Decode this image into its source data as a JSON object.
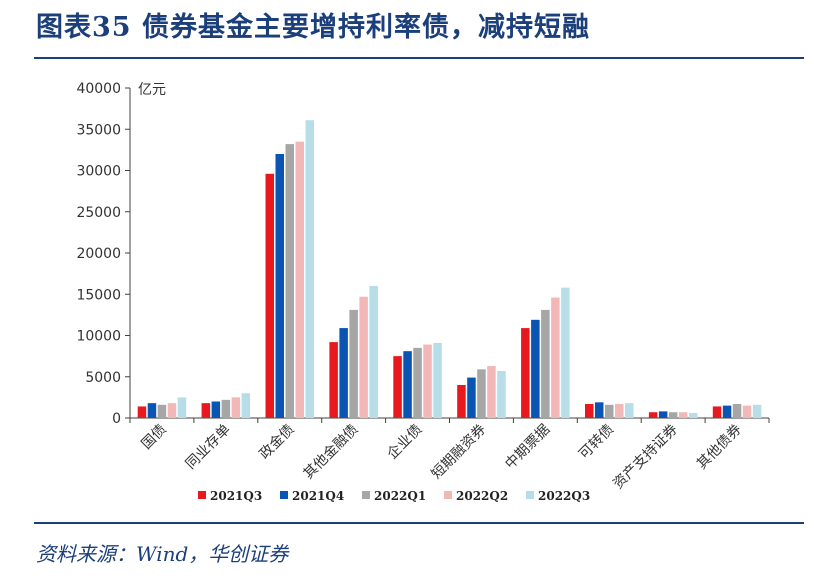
{
  "figure": {
    "title": "图表35  债券基金主要增持利率债，减持短融",
    "source": "资料来源：Wind，华创证券"
  },
  "chart_data": {
    "type": "bar",
    "ylabel": "亿元",
    "ylim": [
      0,
      40000
    ],
    "yticks": [
      0,
      5000,
      10000,
      15000,
      20000,
      25000,
      30000,
      35000,
      40000
    ],
    "grid": false,
    "legend_position": "bottom",
    "categories": [
      "国债",
      "同业存单",
      "政金债",
      "其他金融债",
      "企业债",
      "短期融资券",
      "中期票据",
      "可转债",
      "资产支持证券",
      "其他债券"
    ],
    "series": [
      {
        "name": "2021Q3",
        "color": "#e8191e",
        "values": [
          1400,
          1800,
          29600,
          9200,
          7500,
          4000,
          10900,
          1700,
          700,
          1400
        ]
      },
      {
        "name": "2021Q4",
        "color": "#0a54b4",
        "values": [
          1800,
          2000,
          32000,
          10900,
          8100,
          4900,
          11900,
          1900,
          800,
          1500
        ]
      },
      {
        "name": "2022Q1",
        "color": "#a6a6a6",
        "values": [
          1600,
          2200,
          33200,
          13100,
          8500,
          5900,
          13100,
          1600,
          700,
          1700
        ]
      },
      {
        "name": "2022Q2",
        "color": "#f2b8b8",
        "values": [
          1800,
          2500,
          33500,
          14700,
          8900,
          6300,
          14600,
          1700,
          700,
          1500
        ]
      },
      {
        "name": "2022Q3",
        "color": "#b7dde8",
        "values": [
          2500,
          3000,
          36100,
          16000,
          9100,
          5700,
          15800,
          1800,
          600,
          1600
        ]
      }
    ]
  }
}
